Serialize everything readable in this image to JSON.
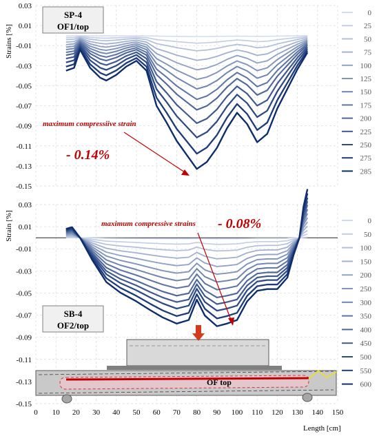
{
  "chart_data": [
    {
      "type": "line",
      "title": "SP-4",
      "subtitle": "OF1/top",
      "ylabel": "Strains [%]",
      "xlabel": "",
      "xlim": [
        0,
        150
      ],
      "ylim": [
        -0.15,
        0.03
      ],
      "yticks": [
        "0.03",
        "0.01",
        "-0.01",
        "-0.03",
        "-0.05",
        "-0.07",
        "-0.09",
        "-0.11",
        "-0.13",
        "-0.15"
      ],
      "grid": true,
      "legend_position": "right",
      "x": [
        15,
        19,
        22,
        27,
        32,
        35,
        40,
        45,
        50,
        55,
        60,
        65,
        70,
        75,
        80,
        85,
        90,
        95,
        100,
        105,
        110,
        115,
        120,
        125,
        130,
        135
      ],
      "shape": [
        0.25,
        0.23,
        0.1,
        0.23,
        0.3,
        0.32,
        0.28,
        0.22,
        0.18,
        0.25,
        0.5,
        0.62,
        0.75,
        0.85,
        0.95,
        0.9,
        0.8,
        0.66,
        0.55,
        0.63,
        0.76,
        0.7,
        0.52,
        0.38,
        0.24,
        0.12
      ],
      "series": [
        {
          "name": "0",
          "peak": -0.001
        },
        {
          "name": "25",
          "peak": -0.008
        },
        {
          "name": "50",
          "peak": -0.016
        },
        {
          "name": "75",
          "peak": -0.026
        },
        {
          "name": "100",
          "peak": -0.036
        },
        {
          "name": "125",
          "peak": -0.046
        },
        {
          "name": "150",
          "peak": -0.056
        },
        {
          "name": "175",
          "peak": -0.067
        },
        {
          "name": "200",
          "peak": -0.078
        },
        {
          "name": "225",
          "peak": -0.092
        },
        {
          "name": "250",
          "peak": -0.107
        },
        {
          "name": "275",
          "peak": -0.124
        },
        {
          "name": "285",
          "peak": -0.14
        }
      ],
      "annotation": {
        "label": "maximum compressiive strain",
        "value": "- 0.14%",
        "at": [
          80,
          -0.14
        ]
      }
    },
    {
      "type": "line",
      "title": "SB-4",
      "subtitle": "OF2/top",
      "ylabel": "Strain [%]",
      "xlabel": "Length [cm]",
      "xlim": [
        0,
        150
      ],
      "ylim": [
        -0.15,
        0.03
      ],
      "xticks": [
        "0",
        "10",
        "20",
        "30",
        "40",
        "50",
        "60",
        "70",
        "80",
        "90",
        "100",
        "110",
        "120",
        "130",
        "140",
        "150"
      ],
      "yticks": [
        "0.03",
        "0.01",
        "-0.01",
        "-0.03",
        "-0.05",
        "-0.07",
        "-0.09",
        "-0.11",
        "-0.13",
        "-0.15"
      ],
      "grid": true,
      "legend_position": "right",
      "x": [
        15,
        18,
        22,
        28,
        35,
        42,
        50,
        57,
        63,
        70,
        76,
        80,
        84,
        90,
        95,
        100,
        105,
        110,
        115,
        120,
        125,
        128,
        131,
        133,
        135
      ],
      "shape": [
        -0.1,
        -0.12,
        0.0,
        0.25,
        0.5,
        0.62,
        0.72,
        0.82,
        0.9,
        0.97,
        0.93,
        0.7,
        0.88,
        1.0,
        0.97,
        0.93,
        0.72,
        0.6,
        0.58,
        0.58,
        0.45,
        0.2,
        0.0,
        -0.35,
        -0.55
      ],
      "series": [
        {
          "name": "0",
          "peak": -0.001
        },
        {
          "name": "50",
          "peak": -0.006
        },
        {
          "name": "100",
          "peak": -0.012
        },
        {
          "name": "150",
          "peak": -0.019
        },
        {
          "name": "200",
          "peak": -0.026
        },
        {
          "name": "250",
          "peak": -0.033
        },
        {
          "name": "300",
          "peak": -0.04
        },
        {
          "name": "350",
          "peak": -0.047
        },
        {
          "name": "400",
          "peak": -0.054
        },
        {
          "name": "450",
          "peak": -0.06
        },
        {
          "name": "500",
          "peak": -0.066
        },
        {
          "name": "550",
          "peak": -0.073
        },
        {
          "name": "600",
          "peak": -0.08
        }
      ],
      "annotation": {
        "label": "maximum compressive strains",
        "value": "- 0.08%",
        "at": [
          98,
          -0.08
        ]
      },
      "inset_label": "OF top"
    }
  ],
  "colors": {
    "light_series": "#d3ddf0",
    "dark_series": "#0d2d6e",
    "annotation": "#c00000",
    "beam_fill": "#c8c8c8",
    "fiber_line": "#c00000",
    "arrow_fill": "#d23b1d"
  }
}
